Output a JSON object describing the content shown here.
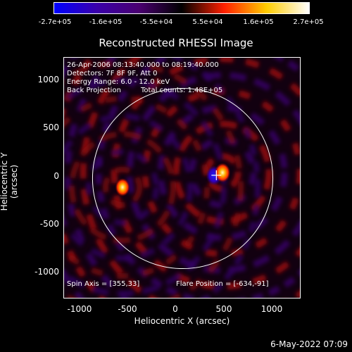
{
  "colorbar": {
    "ticks": [
      "-2.7e+05",
      "-1.6e+05",
      "-5.5e+04",
      "5.5e+04",
      "1.6e+05",
      "2.7e+05"
    ],
    "colors": [
      "#0000ff",
      "#3a00aa",
      "#4a0070",
      "#000000",
      "#ff2000",
      "#ffcc00",
      "#ffffff"
    ]
  },
  "title": "Reconstructed RHESSI Image",
  "info": {
    "time_range": "26-Apr-2006 08:13:40.000 to 08:19:40.000",
    "detectors": "Detectors: 7F 8F 9F, Att 0",
    "energy": "Energy Range: 6.0 - 12.0 keV",
    "method": "Back Projection",
    "counts": "Total counts: 1.48E+05",
    "spin_axis": "Spin Axis = [355,33]",
    "flare_position": "Flare Position = [-634,-91]"
  },
  "axes": {
    "xlabel": "Heliocentric X (arcsec)",
    "ylabel": "Heliocentric Y (arcsec)",
    "xticks": [
      "-1000",
      "-500",
      "0",
      "500",
      "1000"
    ],
    "yticks": [
      "1000",
      "500",
      "0",
      "-500",
      "-1000"
    ],
    "xlim": [
      -1250,
      1250
    ],
    "ylim": [
      -1250,
      1250
    ],
    "solar_radius_arcsec": 950
  },
  "sources": {
    "flare_blob": [
      -634,
      -91
    ],
    "bright_blob": [
      420,
      60
    ],
    "negative_blob": [
      330,
      30
    ],
    "crosshair": [
      355,
      33
    ]
  },
  "timestamp": "6-May-2022 07:09"
}
